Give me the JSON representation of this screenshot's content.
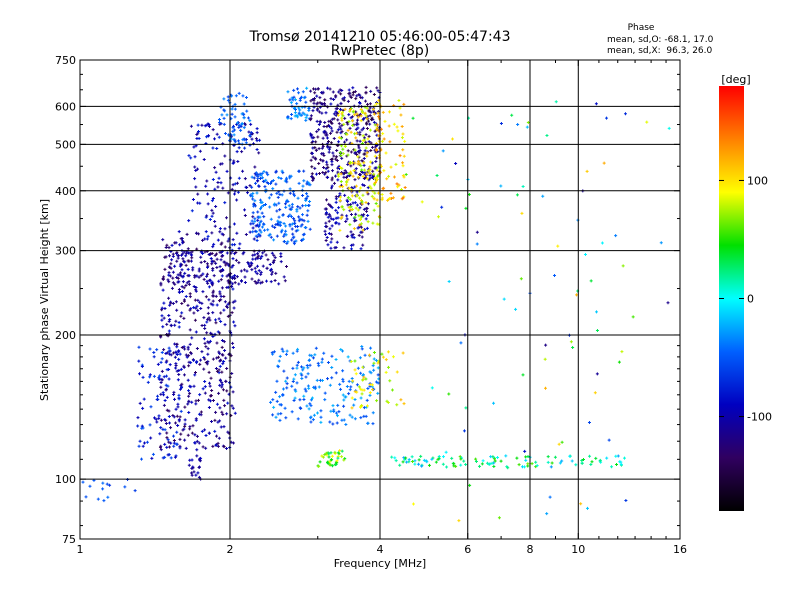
{
  "chart_data": {
    "type": "scatter",
    "title": "Tromsø 20141210 05:46:00-05:47:43",
    "subtitle": "RwPretec (8p)",
    "xlabel": "Frequency [MHz]",
    "ylabel": "Stationary phase Virtual Height [km]",
    "x_scale": "log",
    "y_scale": "log",
    "xlim": [
      1,
      16
    ],
    "ylim": [
      75,
      750
    ],
    "x_ticks": [
      1,
      2,
      4,
      6,
      8,
      10,
      16
    ],
    "y_ticks": [
      75,
      100,
      200,
      300,
      400,
      500,
      600,
      750
    ],
    "grid": true,
    "stats": {
      "heading": "Phase",
      "line_o": "mean, sd,O: -68.1, 17.0",
      "line_x": "mean, sd,X:  96.3, 26.0"
    },
    "colorbar": {
      "label": "[deg]",
      "range": [
        -180,
        180
      ],
      "ticks": [
        100,
        0,
        -100
      ],
      "colors": [
        "#ff0000",
        "#ff8000",
        "#ffff00",
        "#00e000",
        "#00ffff",
        "#0060ff",
        "#0000c0",
        "#300060",
        "#000000"
      ]
    },
    "series": [
      {
        "x_range": [
          1.45,
          2.05
        ],
        "y_range": [
          115,
          330
        ],
        "count": 520,
        "phase": [
          -140,
          -80
        ]
      },
      {
        "x_range": [
          1.3,
          1.6
        ],
        "y_range": [
          110,
          190
        ],
        "count": 90,
        "phase": [
          -100,
          -50
        ]
      },
      {
        "x_range": [
          1.5,
          2.6
        ],
        "y_range": [
          255,
          300
        ],
        "count": 160,
        "phase": [
          -130,
          -90
        ]
      },
      {
        "x_range": [
          1.65,
          2.3
        ],
        "y_range": [
          300,
          560
        ],
        "count": 170,
        "phase": [
          -120,
          -70
        ]
      },
      {
        "x_range": [
          1.9,
          2.2
        ],
        "y_range": [
          500,
          640
        ],
        "count": 60,
        "phase": [
          -60,
          -30
        ]
      },
      {
        "x_range": [
          2.2,
          2.9
        ],
        "y_range": [
          310,
          440
        ],
        "count": 220,
        "phase": [
          -70,
          -30
        ]
      },
      {
        "x_range": [
          2.6,
          2.9
        ],
        "y_range": [
          560,
          660
        ],
        "count": 50,
        "phase": [
          -60,
          -20
        ]
      },
      {
        "x_range": [
          2.9,
          4.0
        ],
        "y_range": [
          420,
          660
        ],
        "count": 380,
        "phase": [
          -150,
          -90
        ]
      },
      {
        "x_range": [
          3.1,
          3.8
        ],
        "y_range": [
          300,
          420
        ],
        "count": 120,
        "phase": [
          -130,
          -80
        ]
      },
      {
        "x_range": [
          3.3,
          4.0
        ],
        "y_range": [
          330,
          600
        ],
        "count": 180,
        "phase": [
          60,
          120
        ]
      },
      {
        "x_range": [
          3.9,
          4.5
        ],
        "y_range": [
          380,
          620
        ],
        "count": 80,
        "phase": [
          80,
          140
        ]
      },
      {
        "x_range": [
          2.4,
          4.0
        ],
        "y_range": [
          130,
          190
        ],
        "count": 200,
        "phase": [
          -60,
          -20
        ]
      },
      {
        "x_range": [
          3.5,
          4.5
        ],
        "y_range": [
          140,
          185
        ],
        "count": 50,
        "phase": [
          60,
          120
        ]
      },
      {
        "x_range": [
          3.0,
          3.4
        ],
        "y_range": [
          106,
          115
        ],
        "count": 40,
        "phase": [
          20,
          100
        ]
      },
      {
        "x_range": [
          4.2,
          12.5
        ],
        "y_range": [
          106,
          112
        ],
        "count": 110,
        "phase": [
          -30,
          60
        ]
      },
      {
        "x_range": [
          4.5,
          15.5
        ],
        "y_range": [
          80,
          620
        ],
        "count": 90,
        "phase": [
          -120,
          120
        ]
      },
      {
        "x_range": [
          1.0,
          1.3
        ],
        "y_range": [
          90,
          100
        ],
        "count": 14,
        "phase": [
          -80,
          -40
        ]
      },
      {
        "x_range": [
          1.65,
          1.75
        ],
        "y_range": [
          100,
          112
        ],
        "count": 20,
        "phase": [
          -120,
          -90
        ]
      }
    ]
  }
}
